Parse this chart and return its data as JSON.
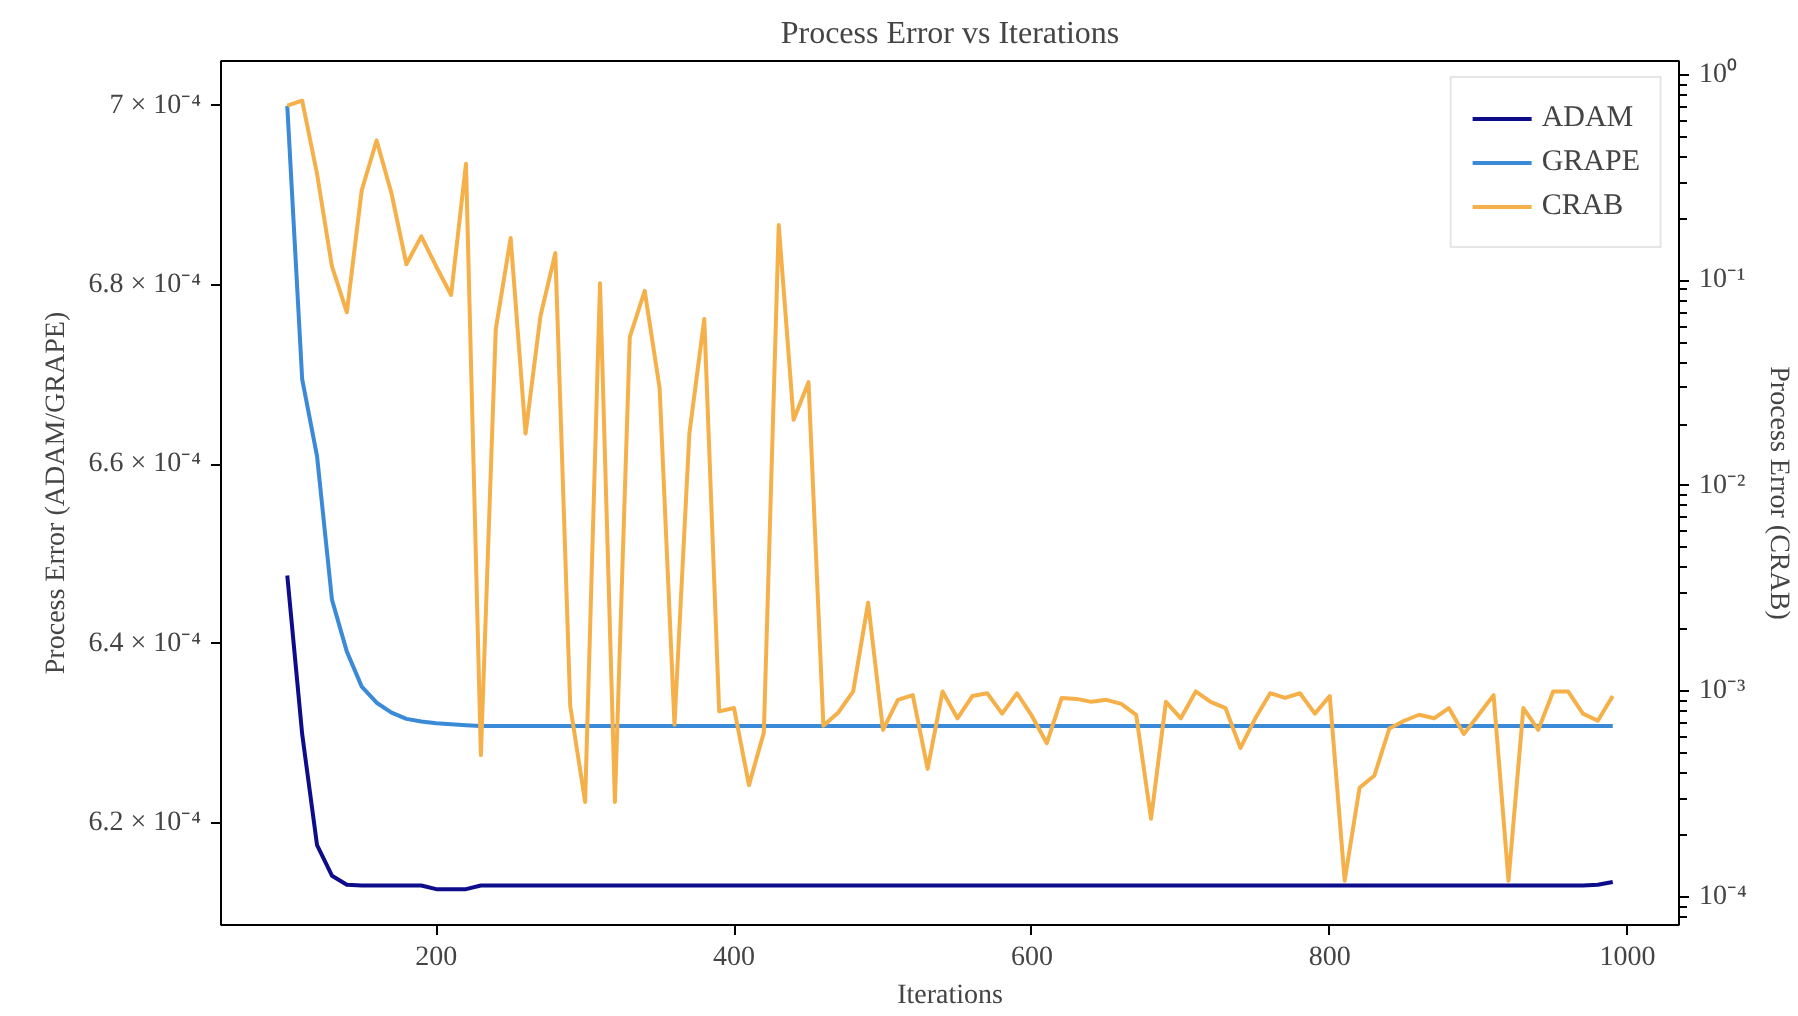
{
  "chart_data": {
    "type": "line",
    "title": "Process Error vs Iterations",
    "xlabel": "Iterations",
    "ylabel": "Process Error (ADAM/GRAPE)",
    "y2label": "Process Error (CRAB)",
    "log": "y2",
    "xlim": [
      55.5,
      1034.5
    ],
    "xticks": [
      200,
      400,
      600,
      800,
      1000
    ],
    "ylim": [
      0.0006086,
      0.000705
    ],
    "yticks": [
      {
        "value": 0.00062,
        "label": "6.2 × 10⁻⁴"
      },
      {
        "value": 0.00064,
        "label": "6.4 × 10⁻⁴"
      },
      {
        "value": 0.00066,
        "label": "6.6 × 10⁻⁴"
      },
      {
        "value": 0.00068,
        "label": "6.8 × 10⁻⁴"
      },
      {
        "value": 0.0007,
        "label": "7 × 10⁻⁴"
      }
    ],
    "y2lim": [
      7.3e-05,
      1.17
    ],
    "y2ticks": [
      {
        "value": 0.0001,
        "label": "10⁻⁴"
      },
      {
        "value": 0.001,
        "label": "10⁻³"
      },
      {
        "value": 0.01,
        "label": "10⁻²"
      },
      {
        "value": 0.1,
        "label": "10⁻¹"
      },
      {
        "value": 1,
        "label": "10⁰"
      }
    ],
    "grid": false,
    "legend": "top right",
    "line_style": "solid",
    "x": [
      100,
      110,
      120,
      130,
      140,
      150,
      160,
      170,
      180,
      190,
      200,
      210,
      220,
      230,
      240,
      250,
      260,
      270,
      280,
      290,
      300,
      310,
      320,
      330,
      340,
      350,
      360,
      370,
      380,
      390,
      400,
      410,
      420,
      430,
      440,
      450,
      460,
      470,
      480,
      490,
      500,
      510,
      520,
      530,
      540,
      550,
      560,
      570,
      580,
      590,
      600,
      610,
      620,
      630,
      640,
      650,
      660,
      670,
      680,
      690,
      700,
      710,
      720,
      730,
      740,
      750,
      760,
      770,
      780,
      790,
      800,
      810,
      820,
      830,
      840,
      850,
      860,
      870,
      880,
      890,
      900,
      910,
      920,
      930,
      940,
      950,
      960,
      970,
      980,
      990
    ],
    "series": [
      {
        "name": "ADAM",
        "color": "#0d0d8c",
        "values": [
          0.0006476,
          0.0006299,
          0.0006175,
          0.0006141,
          0.0006131,
          0.000613,
          0.000613,
          0.000613,
          0.000613,
          0.000613,
          0.0006126,
          0.0006126,
          0.0006126,
          0.000613,
          0.000613,
          0.000613,
          0.000613,
          0.000613,
          0.000613,
          0.000613,
          0.000613,
          0.000613,
          0.000613,
          0.000613,
          0.000613,
          0.000613,
          0.000613,
          0.000613,
          0.000613,
          0.000613,
          0.000613,
          0.000613,
          0.000613,
          0.000613,
          0.000613,
          0.000613,
          0.000613,
          0.000613,
          0.000613,
          0.000613,
          0.000613,
          0.000613,
          0.000613,
          0.000613,
          0.000613,
          0.000613,
          0.000613,
          0.000613,
          0.000613,
          0.000613,
          0.000613,
          0.000613,
          0.000613,
          0.000613,
          0.000613,
          0.000613,
          0.000613,
          0.000613,
          0.000613,
          0.000613,
          0.000613,
          0.000613,
          0.000613,
          0.000613,
          0.000613,
          0.000613,
          0.000613,
          0.000613,
          0.000613,
          0.000613,
          0.000613,
          0.000613,
          0.000613,
          0.000613,
          0.000613,
          0.000613,
          0.000613,
          0.000613,
          0.000613,
          0.000613,
          0.000613,
          0.000613,
          0.000613,
          0.000613,
          0.000613,
          0.000613,
          0.000613,
          0.000613,
          0.0006131,
          0.0006134
        ]
      },
      {
        "name": "GRAPE",
        "color": "#3a8ad8",
        "values": [
          0.0007,
          0.0006695,
          0.0006609,
          0.0006449,
          0.0006391,
          0.0006352,
          0.0006334,
          0.0006323,
          0.0006316,
          0.0006313,
          0.0006311,
          0.000631,
          0.0006309,
          0.0006308,
          0.0006308,
          0.0006308,
          0.0006308,
          0.0006308,
          0.0006308,
          0.0006308,
          0.0006308,
          0.0006308,
          0.0006308,
          0.0006308,
          0.0006308,
          0.0006308,
          0.0006308,
          0.0006308,
          0.0006308,
          0.0006308,
          0.0006308,
          0.0006308,
          0.0006308,
          0.0006308,
          0.0006308,
          0.0006308,
          0.0006308,
          0.0006308,
          0.0006308,
          0.0006308,
          0.0006308,
          0.0006308,
          0.0006308,
          0.0006308,
          0.0006308,
          0.0006308,
          0.0006308,
          0.0006308,
          0.0006308,
          0.0006308,
          0.0006308,
          0.0006308,
          0.0006308,
          0.0006308,
          0.0006308,
          0.0006308,
          0.0006308,
          0.0006308,
          0.0006308,
          0.0006308,
          0.0006308,
          0.0006308,
          0.0006308,
          0.0006308,
          0.0006308,
          0.0006308,
          0.0006308,
          0.0006308,
          0.0006308,
          0.0006308,
          0.0006308,
          0.0006308,
          0.0006308,
          0.0006308,
          0.0006308,
          0.0006308,
          0.0006308,
          0.0006308,
          0.0006308,
          0.0006308,
          0.0006308,
          0.0006308,
          0.0006308,
          0.0006308,
          0.0006308,
          0.0006308,
          0.0006308,
          0.0006308,
          0.0006308,
          0.0006308
        ]
      },
      {
        "name": "CRAB",
        "color": "#f5b04a",
        "axis": "y2",
        "values": [
          0.71,
          0.75,
          0.33,
          0.117,
          0.07,
          0.275,
          0.48,
          0.265,
          0.12,
          0.164,
          0.117,
          0.085,
          0.37,
          0.00049,
          0.058,
          0.161,
          0.018,
          0.067,
          0.136,
          0.00085,
          0.00029,
          0.097,
          0.00029,
          0.053,
          0.089,
          0.03,
          0.00069,
          0.018,
          0.065,
          0.0008,
          0.00083,
          0.00035,
          0.00063,
          0.186,
          0.021,
          0.032,
          0.00068,
          0.00079,
          0.001,
          0.0027,
          0.00065,
          0.00091,
          0.00096,
          0.00042,
          0.001,
          0.00074,
          0.00095,
          0.00098,
          0.00078,
          0.00098,
          0.00076,
          0.00056,
          0.00093,
          0.00092,
          0.00089,
          0.00091,
          0.00087,
          0.00077,
          0.00024,
          0.00089,
          0.00074,
          0.001,
          0.00089,
          0.00083,
          0.00053,
          0.00074,
          0.00098,
          0.00093,
          0.00098,
          0.00078,
          0.00095,
          0.00012,
          0.00034,
          0.00039,
          0.00066,
          0.00072,
          0.00077,
          0.00074,
          0.00083,
          0.00062,
          0.00077,
          0.00096,
          0.00012,
          0.00083,
          0.00065,
          0.001,
          0.001,
          0.00078,
          0.00072,
          0.00095
        ]
      }
    ]
  }
}
